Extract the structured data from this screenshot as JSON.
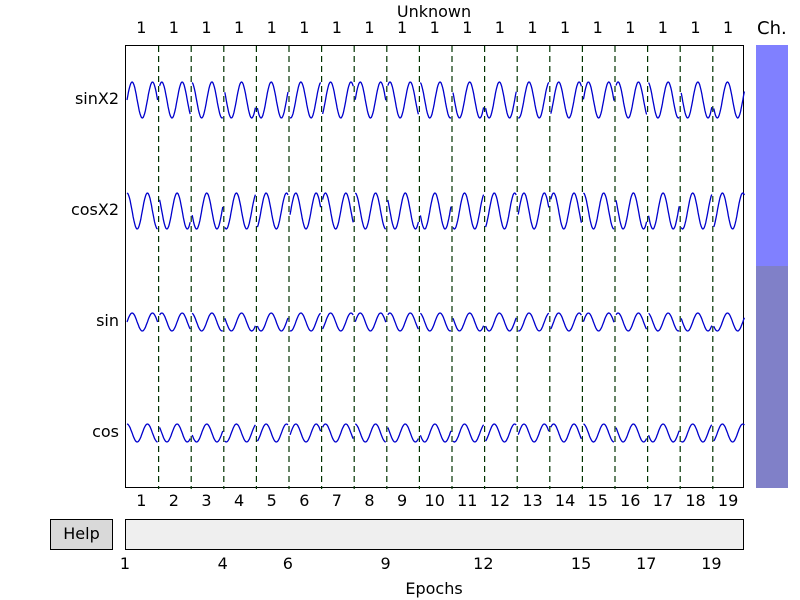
{
  "title": "Unknown",
  "channel_scrollbar_label": "Ch.",
  "help_button": "Help",
  "xlabel": "Epochs",
  "colors": {
    "trace": "#0000cc",
    "epoch_divider": "#003300",
    "scroll_upper": "#8080ff",
    "scroll_lower": "#8080c8",
    "overview_bg": "#efefef",
    "help_bg": "#d9d9d9"
  },
  "channels": [
    {
      "name": "sinX2",
      "amplitude": "large",
      "wave": "sin"
    },
    {
      "name": "cosX2",
      "amplitude": "large",
      "wave": "cos"
    },
    {
      "name": "sin",
      "amplitude": "small",
      "wave": "sin"
    },
    {
      "name": "cos",
      "amplitude": "small",
      "wave": "cos"
    }
  ],
  "epoch_event_labels": [
    "1",
    "1",
    "1",
    "1",
    "1",
    "1",
    "1",
    "1",
    "1",
    "1",
    "1",
    "1",
    "1",
    "1",
    "1",
    "1",
    "1",
    "1",
    "1"
  ],
  "epoch_numbers": [
    "1",
    "2",
    "3",
    "4",
    "5",
    "6",
    "7",
    "8",
    "9",
    "10",
    "11",
    "12",
    "13",
    "14",
    "15",
    "16",
    "17",
    "18",
    "19"
  ],
  "overview_ticks": [
    "1",
    "4",
    "6",
    "9",
    "12",
    "15",
    "17",
    "19"
  ]
}
